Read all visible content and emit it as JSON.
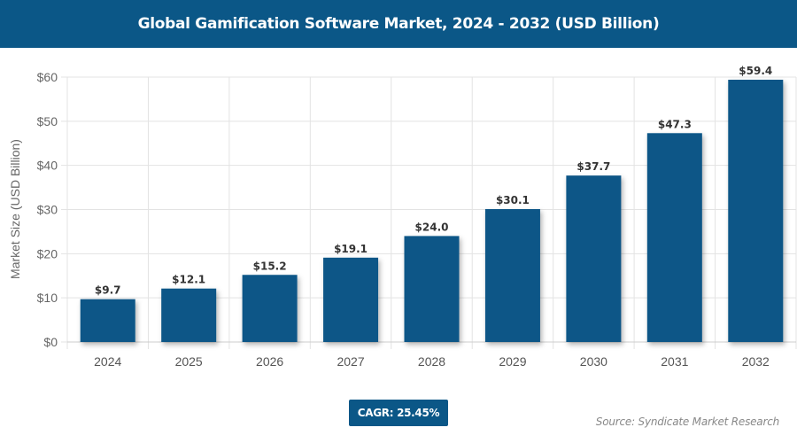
{
  "chart_data": {
    "type": "bar",
    "title": "Global Gamification Software Market, 2024 - 2032 (USD Billion)",
    "xlabel": "",
    "ylabel": "Market Size (USD Billion)",
    "categories": [
      "2024",
      "2025",
      "2026",
      "2027",
      "2028",
      "2029",
      "2030",
      "2031",
      "2032"
    ],
    "values": [
      9.7,
      12.1,
      15.2,
      19.1,
      24.0,
      30.1,
      37.7,
      47.3,
      59.4
    ],
    "data_labels": [
      "$9.7",
      "$12.1",
      "$15.2",
      "$19.1",
      "$24.0",
      "$30.1",
      "$37.7",
      "$47.3",
      "$59.4"
    ],
    "ylim": [
      0,
      60
    ],
    "yticks": [
      0,
      10,
      20,
      30,
      40,
      50,
      60
    ],
    "ytick_labels": [
      "$0",
      "$10",
      "$20",
      "$30",
      "$40",
      "$50",
      "$60"
    ],
    "grid": true,
    "bar_color": "#0b5787"
  },
  "badge": {
    "cagr": "CAGR: 25.45%"
  },
  "source": "Source: Syndicate Market Research"
}
